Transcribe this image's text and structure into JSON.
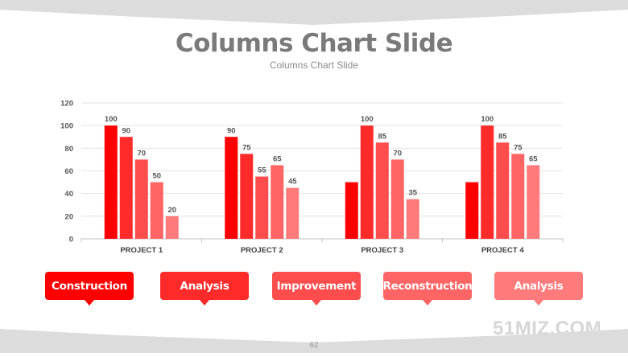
{
  "slide": {
    "title": "Columns Chart Slide",
    "subtitle": "Columns Chart Slide",
    "watermark": "51MIZ.COM",
    "page_number": "62"
  },
  "colors": {
    "band": "#dcdcdc",
    "series": [
      "#ff0000",
      "#ff2b2b",
      "#ff4d4d",
      "#ff6565",
      "#ff7b7b"
    ]
  },
  "callouts": [
    {
      "label": "Construction",
      "color": "#ff0000"
    },
    {
      "label": "Analysis",
      "color": "#ff2b2b"
    },
    {
      "label": "Improvement",
      "color": "#ff4d4d"
    },
    {
      "label": "Reconstruction",
      "color": "#ff6565"
    },
    {
      "label": "Analysis",
      "color": "#ff7b7b"
    }
  ],
  "chart_data": {
    "type": "bar",
    "categories": [
      "PROJECT 1",
      "PROJECT 2",
      "PROJECT 3",
      "PROJECT 4"
    ],
    "series": [
      {
        "values": [
          100,
          90,
          50,
          50
        ],
        "labeled": [
          true,
          true,
          false,
          false
        ]
      },
      {
        "values": [
          90,
          75,
          100,
          100
        ]
      },
      {
        "values": [
          70,
          55,
          85,
          85
        ]
      },
      {
        "values": [
          50,
          65,
          70,
          75
        ]
      },
      {
        "values": [
          20,
          45,
          35,
          65
        ]
      }
    ],
    "yticks": [
      0,
      20,
      40,
      60,
      80,
      100,
      120
    ],
    "ylim": [
      0,
      120
    ],
    "grid": true,
    "legend": "none"
  }
}
